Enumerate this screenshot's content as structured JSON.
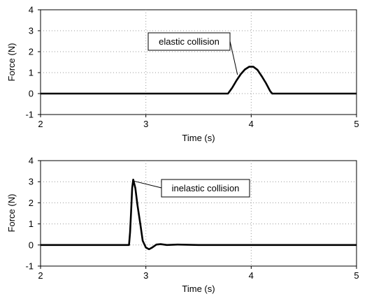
{
  "chart_data": [
    {
      "type": "line",
      "title": "",
      "xlabel": "Time (s)",
      "ylabel": "Force (N)",
      "xlim": [
        2,
        5
      ],
      "ylim": [
        -1,
        4
      ],
      "x_ticks": [
        "2",
        "3",
        "4",
        "5"
      ],
      "y_ticks": [
        "-1",
        "0",
        "1",
        "2",
        "3",
        "4"
      ],
      "grid": "dotted",
      "annotation": {
        "text": "elastic collision",
        "points_to": {
          "x": 3.87,
          "y": 0.9
        }
      },
      "series": [
        {
          "x": [
            2.0,
            2.5,
            3.0,
            3.5,
            3.78,
            3.82,
            3.86,
            3.9,
            3.94,
            3.98,
            4.02,
            4.06,
            4.1,
            4.14,
            4.18,
            4.2,
            4.5,
            5.0
          ],
          "y": [
            0.0,
            0.0,
            0.0,
            0.0,
            0.0,
            0.28,
            0.62,
            0.92,
            1.15,
            1.28,
            1.28,
            1.13,
            0.83,
            0.5,
            0.12,
            0.0,
            0.0,
            0.0
          ]
        }
      ]
    },
    {
      "type": "line",
      "title": "",
      "xlabel": "Time (s)",
      "ylabel": "Force (N)",
      "xlim": [
        2,
        5
      ],
      "ylim": [
        -1,
        4
      ],
      "x_ticks": [
        "2",
        "3",
        "4",
        "5"
      ],
      "y_ticks": [
        "-1",
        "0",
        "1",
        "2",
        "3",
        "4"
      ],
      "grid": "dotted",
      "annotation": {
        "text": "inelastic collision",
        "points_to": {
          "x": 2.87,
          "y": 3.05
        }
      },
      "series": [
        {
          "x": [
            2.0,
            2.5,
            2.84,
            2.85,
            2.86,
            2.87,
            2.88,
            2.9,
            2.92,
            2.95,
            2.97,
            3.0,
            3.03,
            3.06,
            3.1,
            3.14,
            3.2,
            3.3,
            3.5,
            4.0,
            5.0
          ],
          "y": [
            0.0,
            0.0,
            0.0,
            0.6,
            1.6,
            2.7,
            3.1,
            2.7,
            1.9,
            0.9,
            0.2,
            -0.12,
            -0.2,
            -0.12,
            0.02,
            0.04,
            0.0,
            0.02,
            0.0,
            0.0,
            0.0
          ]
        }
      ]
    }
  ]
}
